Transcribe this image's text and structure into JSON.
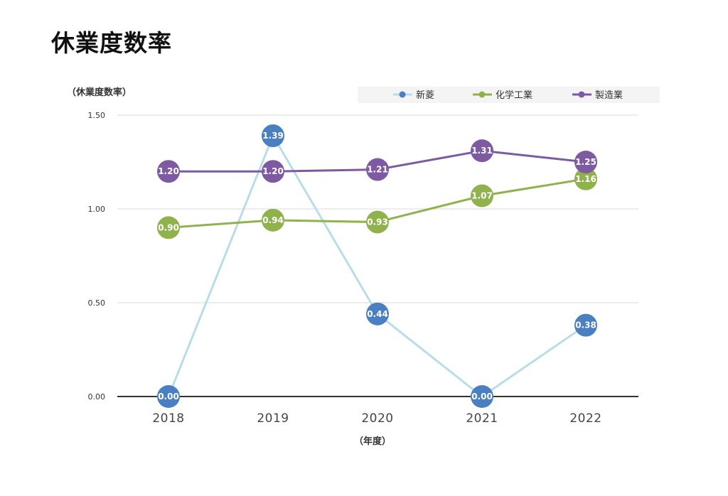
{
  "page": {
    "title": "休業度数率"
  },
  "chart_data": {
    "type": "line",
    "title": "休業度数率",
    "ylabel": "（休業度数率）",
    "xlabel": "（年度）",
    "x": [
      "2018",
      "2019",
      "2020",
      "2021",
      "2022"
    ],
    "ylim": [
      0,
      1.5
    ],
    "yticks": [
      "0.00",
      "0.50",
      "1.00",
      "1.50"
    ],
    "grid": true,
    "legend_position": "top-right",
    "series": [
      {
        "name": "新菱",
        "line_color": "#b8dde9",
        "marker_color": "#4a7fc1",
        "values": [
          0.0,
          1.39,
          0.44,
          0.0,
          0.38
        ],
        "labels": [
          "0.00",
          "1.39",
          "0.44",
          "0.00",
          "0.38"
        ]
      },
      {
        "name": "化学工業",
        "line_color": "#8fb24d",
        "marker_color": "#8fb24d",
        "values": [
          0.9,
          0.94,
          0.93,
          1.07,
          1.16
        ],
        "labels": [
          "0.90",
          "0.94",
          "0.93",
          "1.07",
          "1.16"
        ]
      },
      {
        "name": "製造業",
        "line_color": "#7e5aa2",
        "marker_color": "#7e5aa2",
        "values": [
          1.2,
          1.2,
          1.21,
          1.31,
          1.25
        ],
        "labels": [
          "1.20",
          "1.20",
          "1.21",
          "1.31",
          "1.25"
        ]
      }
    ]
  }
}
